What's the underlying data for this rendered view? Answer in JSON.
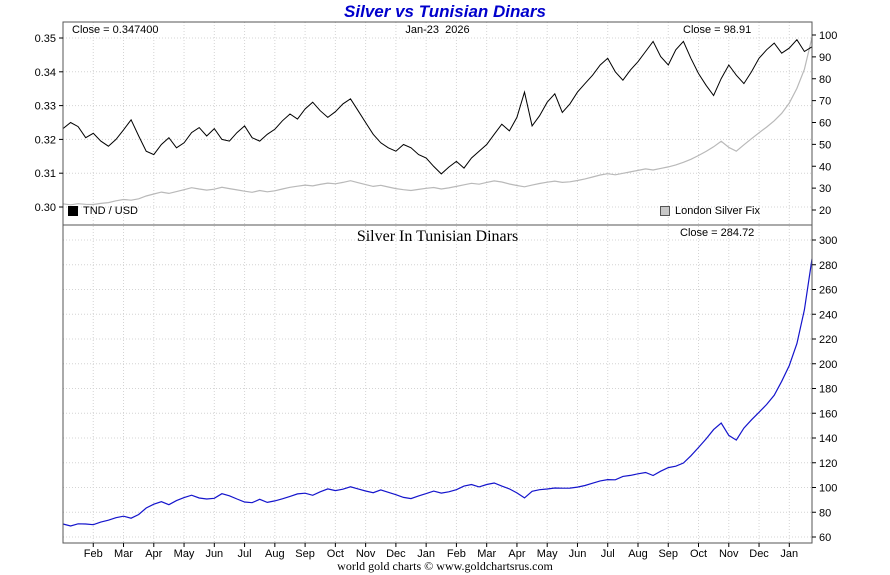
{
  "title": "Silver vs Tunisian Dinars",
  "footer": "world gold charts © www.goldchartsrus.com",
  "colors": {
    "title": "#0000cc",
    "grid": "#d4d4d4",
    "border": "#555555",
    "tnd_usd_line": "#000000",
    "silver_fix_line": "#b9b9b9",
    "silver_tnd_line": "#1414cc"
  },
  "top_panel": {
    "close_left": "Close = 0.347400",
    "date_label": "Jan-23  2026",
    "close_right": "Close = 98.91",
    "legend_left": "TND / USD",
    "legend_right": "London Silver Fix",
    "left_ticks": [
      {
        "label": "0.35",
        "value": 0.35
      },
      {
        "label": "0.34",
        "value": 0.34
      },
      {
        "label": "0.33",
        "value": 0.33
      },
      {
        "label": "0.32",
        "value": 0.32
      },
      {
        "label": "0.31",
        "value": 0.31
      },
      {
        "label": "0.30",
        "value": 0.3
      }
    ],
    "right_ticks": [
      {
        "label": "100",
        "value": 100
      },
      {
        "label": "90",
        "value": 90
      },
      {
        "label": "80",
        "value": 80
      },
      {
        "label": "70",
        "value": 70
      },
      {
        "label": "60",
        "value": 60
      },
      {
        "label": "50",
        "value": 50
      },
      {
        "label": "40",
        "value": 40
      },
      {
        "label": "30",
        "value": 30
      },
      {
        "label": "20",
        "value": 20
      }
    ]
  },
  "bottom_panel": {
    "title": "Silver In Tunisian Dinars",
    "close": "Close = 284.72",
    "right_ticks": [
      {
        "label": "300",
        "value": 300
      },
      {
        "label": "280",
        "value": 280
      },
      {
        "label": "260",
        "value": 260
      },
      {
        "label": "240",
        "value": 240
      },
      {
        "label": "220",
        "value": 220
      },
      {
        "label": "200",
        "value": 200
      },
      {
        "label": "180",
        "value": 180
      },
      {
        "label": "160",
        "value": 160
      },
      {
        "label": "140",
        "value": 140
      },
      {
        "label": "120",
        "value": 120
      },
      {
        "label": "100",
        "value": 100
      },
      {
        "label": "80",
        "value": 80
      },
      {
        "label": "60",
        "value": 60
      }
    ]
  },
  "x_axis": {
    "months": [
      {
        "label": "Feb",
        "t": 1
      },
      {
        "label": "Mar",
        "t": 2
      },
      {
        "label": "Apr",
        "t": 3
      },
      {
        "label": "May",
        "t": 4
      },
      {
        "label": "Jun",
        "t": 5
      },
      {
        "label": "Jul",
        "t": 6
      },
      {
        "label": "Aug",
        "t": 7
      },
      {
        "label": "Sep",
        "t": 8
      },
      {
        "label": "Oct",
        "t": 9
      },
      {
        "label": "Nov",
        "t": 10
      },
      {
        "label": "Dec",
        "t": 11
      },
      {
        "label": "Jan",
        "t": 12
      },
      {
        "label": "Feb",
        "t": 13
      },
      {
        "label": "Mar",
        "t": 14
      },
      {
        "label": "Apr",
        "t": 15
      },
      {
        "label": "May",
        "t": 16
      },
      {
        "label": "Jun",
        "t": 17
      },
      {
        "label": "Jul",
        "t": 18
      },
      {
        "label": "Aug",
        "t": 19
      },
      {
        "label": "Sep",
        "t": 20
      },
      {
        "label": "Oct",
        "t": 21
      },
      {
        "label": "Nov",
        "t": 22
      },
      {
        "label": "Dec",
        "t": 23
      },
      {
        "label": "Jan",
        "t": 24
      }
    ]
  },
  "chart_data": [
    {
      "type": "line",
      "panel": "top",
      "title": "Silver vs Tunisian Dinars",
      "x_start": 0,
      "x_step": 0.25,
      "left_ylim": [
        0.3,
        0.35
      ],
      "right_ylim": [
        20,
        100
      ],
      "legend_position": "bottom-inside",
      "grid": true,
      "series": [
        {
          "name": "TND / USD",
          "axis": "left",
          "color": "#000000",
          "close": 0.3474,
          "values": [
            0.3232,
            0.325,
            0.3238,
            0.3205,
            0.3218,
            0.3195,
            0.318,
            0.32,
            0.3228,
            0.3258,
            0.321,
            0.3165,
            0.3155,
            0.3185,
            0.3205,
            0.3175,
            0.319,
            0.322,
            0.3235,
            0.321,
            0.3232,
            0.32,
            0.3195,
            0.322,
            0.324,
            0.3205,
            0.3195,
            0.3215,
            0.323,
            0.3255,
            0.3275,
            0.326,
            0.329,
            0.331,
            0.3285,
            0.3265,
            0.3282,
            0.3305,
            0.332,
            0.3285,
            0.325,
            0.3215,
            0.319,
            0.3175,
            0.3165,
            0.3185,
            0.3175,
            0.3155,
            0.3145,
            0.312,
            0.3098,
            0.3118,
            0.3135,
            0.3115,
            0.3145,
            0.3165,
            0.3185,
            0.3215,
            0.3245,
            0.3225,
            0.3265,
            0.334,
            0.324,
            0.327,
            0.331,
            0.3335,
            0.328,
            0.3305,
            0.334,
            0.3365,
            0.339,
            0.342,
            0.344,
            0.34,
            0.3375,
            0.3405,
            0.343,
            0.346,
            0.349,
            0.3445,
            0.342,
            0.3465,
            0.349,
            0.344,
            0.3395,
            0.336,
            0.333,
            0.338,
            0.342,
            0.339,
            0.3365,
            0.34,
            0.344,
            0.3465,
            0.3485,
            0.3455,
            0.347,
            0.3495,
            0.346,
            0.3474
          ]
        },
        {
          "name": "London Silver Fix",
          "axis": "right",
          "color": "#b9b9b9",
          "close": 98.91,
          "values": [
            22.8,
            22.4,
            22.9,
            22.6,
            22.5,
            23.0,
            23.4,
            24.2,
            24.8,
            24.5,
            25.1,
            26.4,
            27.3,
            28.2,
            27.6,
            28.4,
            29.3,
            30.2,
            29.6,
            29.1,
            29.5,
            30.4,
            29.8,
            29.2,
            28.6,
            28.1,
            28.9,
            28.3,
            28.8,
            29.6,
            30.4,
            30.9,
            31.4,
            31.0,
            31.7,
            32.3,
            32.0,
            32.6,
            33.4,
            32.5,
            31.6,
            30.8,
            31.3,
            30.5,
            29.8,
            29.3,
            28.9,
            29.4,
            29.9,
            30.3,
            29.6,
            30.1,
            30.8,
            31.5,
            32.2,
            31.8,
            32.6,
            33.3,
            32.8,
            31.9,
            31.2,
            30.6,
            31.4,
            32.1,
            32.7,
            33.2,
            32.6,
            32.9,
            33.5,
            34.2,
            35.1,
            36.0,
            36.6,
            36.1,
            36.8,
            37.4,
            38.1,
            38.8,
            38.3,
            39.0,
            39.7,
            40.6,
            41.8,
            43.2,
            44.9,
            46.8,
            48.9,
            51.4,
            48.6,
            46.9,
            49.8,
            52.6,
            55.3,
            57.9,
            60.8,
            64.2,
            68.9,
            75.6,
            84.3,
            98.91
          ]
        }
      ]
    },
    {
      "type": "line",
      "panel": "bottom",
      "title": "Silver In Tunisian Dinars",
      "x_start": 0,
      "x_step": 0.25,
      "right_ylim": [
        60,
        300
      ],
      "grid": true,
      "series": [
        {
          "name": "Silver In Tunisian Dinars",
          "axis": "right",
          "color": "#1414cc",
          "close": 284.72,
          "values": [
            70.5,
            68.9,
            70.7,
            70.5,
            69.9,
            72.0,
            73.6,
            75.6,
            76.8,
            75.2,
            78.2,
            83.4,
            86.5,
            88.5,
            86.1,
            89.4,
            91.8,
            93.8,
            91.5,
            90.7,
            91.3,
            95.0,
            93.3,
            90.7,
            88.3,
            87.7,
            90.5,
            88.0,
            89.2,
            90.9,
            92.8,
            94.8,
            95.4,
            93.7,
            96.5,
            98.9,
            97.5,
            98.6,
            100.6,
            98.9,
            97.2,
            95.8,
            98.1,
            96.1,
            94.2,
            92.0,
            91.0,
            93.2,
            95.1,
            97.1,
            95.5,
            96.5,
            98.2,
            101.1,
            102.4,
            100.5,
            102.4,
            103.6,
            101.1,
            98.9,
            95.6,
            91.6,
            96.9,
            98.2,
            98.8,
            99.6,
            99.4,
            99.5,
            100.3,
            101.6,
            103.5,
            105.3,
            106.4,
            106.2,
            109.0,
            109.8,
            111.1,
            112.1,
            109.7,
            113.2,
            116.1,
            117.2,
            119.8,
            125.6,
            132.3,
            139.3,
            146.8,
            152.1,
            142.1,
            138.3,
            148.0,
            154.7,
            160.8,
            167.1,
            174.5,
            185.8,
            198.6,
            216.3,
            243.6,
            284.7
          ]
        }
      ]
    }
  ]
}
